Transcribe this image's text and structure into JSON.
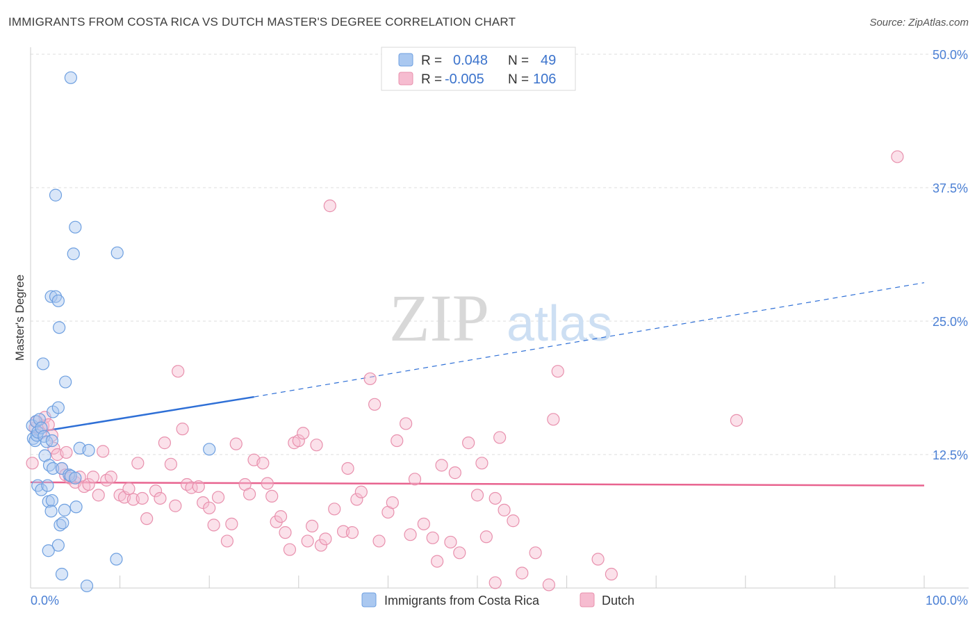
{
  "header": {
    "title": "IMMIGRANTS FROM COSTA RICA VS DUTCH MASTER'S DEGREE CORRELATION CHART",
    "source": "Source: ZipAtlas.com"
  },
  "watermark": {
    "zip": "ZIP",
    "atlas": "atlas"
  },
  "colors": {
    "blue_fill": "#aac8f0",
    "blue_stroke": "#6d9fe0",
    "blue_line": "#2e6fd6",
    "pink_fill": "#f6bcd0",
    "pink_stroke": "#e890ad",
    "pink_line": "#e8638f",
    "tick_text": "#4a7fd4",
    "grid": "#dddddd"
  },
  "chart_data": {
    "type": "scatter",
    "title": "IMMIGRANTS FROM COSTA RICA VS DUTCH MASTER'S DEGREE CORRELATION CHART",
    "xlabel": "",
    "ylabel": "Master's Degree",
    "xlim": [
      0,
      100
    ],
    "ylim": [
      0,
      50
    ],
    "x_tick_labels": [
      "0.0%",
      "100.0%"
    ],
    "y_ticks": [
      12.5,
      25.0,
      37.5,
      50.0
    ],
    "y_tick_labels": [
      "12.5%",
      "25.0%",
      "37.5%",
      "50.0%"
    ],
    "grid": true,
    "legend_position": "top-center",
    "stats": [
      {
        "r_label": "R =",
        "r_value": "0.048",
        "n_label": "N =",
        "n_value": "49"
      },
      {
        "r_label": "R =",
        "r_value": "-0.005",
        "n_label": "N =",
        "n_value": "106"
      }
    ],
    "series": [
      {
        "name": "Immigrants from Costa Rica",
        "color": "#6d9fe0",
        "trend": {
          "x": [
            0,
            25,
            100
          ],
          "y": [
            14.5,
            17.9,
            28.6
          ],
          "solid_until": 25
        },
        "points": [
          [
            0.2,
            15.2
          ],
          [
            0.3,
            14.0
          ],
          [
            0.5,
            13.8
          ],
          [
            0.6,
            15.6
          ],
          [
            0.7,
            14.3
          ],
          [
            0.8,
            14.6
          ],
          [
            1.0,
            15.8
          ],
          [
            1.2,
            15.0
          ],
          [
            1.5,
            14.2
          ],
          [
            1.8,
            13.7
          ],
          [
            1.4,
            21.0
          ],
          [
            1.6,
            12.4
          ],
          [
            0.8,
            9.6
          ],
          [
            1.2,
            9.2
          ],
          [
            1.9,
            9.6
          ],
          [
            2.1,
            11.5
          ],
          [
            2.5,
            11.2
          ],
          [
            2.0,
            8.1
          ],
          [
            2.4,
            8.2
          ],
          [
            2.3,
            7.2
          ],
          [
            3.5,
            11.2
          ],
          [
            4.3,
            10.6
          ],
          [
            4.5,
            10.5
          ],
          [
            5.0,
            10.3
          ],
          [
            3.3,
            5.9
          ],
          [
            3.6,
            6.1
          ],
          [
            3.8,
            7.3
          ],
          [
            5.1,
            7.6
          ],
          [
            3.1,
            4.0
          ],
          [
            2.0,
            3.5
          ],
          [
            3.5,
            1.3
          ],
          [
            6.3,
            0.2
          ],
          [
            2.5,
            16.5
          ],
          [
            3.1,
            16.9
          ],
          [
            3.9,
            19.3
          ],
          [
            2.3,
            27.3
          ],
          [
            2.8,
            27.3
          ],
          [
            3.1,
            26.9
          ],
          [
            3.2,
            24.4
          ],
          [
            2.8,
            36.8
          ],
          [
            5.0,
            33.8
          ],
          [
            4.8,
            31.3
          ],
          [
            9.7,
            31.4
          ],
          [
            4.5,
            47.8
          ],
          [
            5.5,
            13.1
          ],
          [
            6.5,
            12.9
          ],
          [
            20.0,
            13.0
          ],
          [
            9.6,
            2.7
          ],
          [
            2.4,
            13.8
          ]
        ]
      },
      {
        "name": "Dutch",
        "color": "#e890ad",
        "trend": {
          "x": [
            0,
            100
          ],
          "y": [
            9.9,
            9.6
          ]
        },
        "points": [
          [
            0.2,
            11.7
          ],
          [
            0.5,
            15.0
          ],
          [
            0.7,
            15.6
          ],
          [
            1.1,
            14.5
          ],
          [
            1.4,
            15.2
          ],
          [
            1.6,
            16.0
          ],
          [
            2.0,
            15.3
          ],
          [
            2.4,
            14.3
          ],
          [
            2.6,
            13.1
          ],
          [
            3.0,
            12.5
          ],
          [
            3.5,
            11.2
          ],
          [
            3.9,
            10.6
          ],
          [
            4.4,
            10.3
          ],
          [
            5.0,
            9.9
          ],
          [
            5.5,
            10.4
          ],
          [
            6.0,
            9.5
          ],
          [
            6.5,
            9.7
          ],
          [
            7.0,
            10.4
          ],
          [
            7.6,
            8.7
          ],
          [
            8.1,
            12.8
          ],
          [
            8.5,
            10.1
          ],
          [
            9.0,
            10.4
          ],
          [
            10.0,
            8.7
          ],
          [
            10.5,
            8.5
          ],
          [
            11.0,
            9.3
          ],
          [
            11.5,
            8.3
          ],
          [
            12.0,
            11.7
          ],
          [
            12.5,
            8.4
          ],
          [
            13.0,
            6.5
          ],
          [
            14.0,
            9.1
          ],
          [
            14.5,
            8.4
          ],
          [
            15.0,
            13.6
          ],
          [
            15.7,
            11.6
          ],
          [
            16.2,
            7.7
          ],
          [
            17.0,
            14.9
          ],
          [
            17.5,
            9.7
          ],
          [
            18.0,
            9.4
          ],
          [
            18.8,
            9.5
          ],
          [
            19.3,
            8.0
          ],
          [
            20.0,
            7.5
          ],
          [
            20.5,
            5.9
          ],
          [
            21.0,
            8.5
          ],
          [
            22.0,
            4.4
          ],
          [
            22.5,
            6.0
          ],
          [
            23.0,
            13.5
          ],
          [
            24.0,
            9.7
          ],
          [
            24.5,
            8.8
          ],
          [
            25.0,
            12.0
          ],
          [
            26.0,
            11.7
          ],
          [
            26.5,
            9.8
          ],
          [
            27.0,
            8.6
          ],
          [
            27.5,
            6.2
          ],
          [
            28.0,
            6.7
          ],
          [
            28.5,
            5.2
          ],
          [
            29.0,
            3.6
          ],
          [
            29.5,
            13.6
          ],
          [
            30.0,
            13.8
          ],
          [
            30.5,
            14.5
          ],
          [
            31.0,
            4.4
          ],
          [
            31.5,
            5.8
          ],
          [
            32.0,
            13.4
          ],
          [
            32.5,
            4.0
          ],
          [
            33.0,
            4.6
          ],
          [
            34.0,
            7.4
          ],
          [
            35.0,
            5.3
          ],
          [
            35.5,
            11.2
          ],
          [
            36.0,
            5.2
          ],
          [
            36.5,
            8.3
          ],
          [
            37.0,
            9.0
          ],
          [
            38.0,
            19.6
          ],
          [
            38.5,
            17.2
          ],
          [
            39.0,
            4.4
          ],
          [
            40.0,
            7.1
          ],
          [
            40.5,
            8.0
          ],
          [
            41.0,
            13.8
          ],
          [
            42.0,
            15.4
          ],
          [
            42.5,
            5.0
          ],
          [
            43.0,
            10.2
          ],
          [
            44.0,
            6.0
          ],
          [
            45.0,
            4.7
          ],
          [
            45.5,
            2.5
          ],
          [
            46.0,
            11.5
          ],
          [
            47.0,
            4.3
          ],
          [
            47.5,
            10.8
          ],
          [
            48.0,
            3.3
          ],
          [
            49.0,
            13.6
          ],
          [
            50.0,
            8.7
          ],
          [
            50.5,
            11.7
          ],
          [
            51.0,
            4.8
          ],
          [
            52.0,
            8.4
          ],
          [
            52.5,
            14.1
          ],
          [
            53.0,
            7.3
          ],
          [
            54.0,
            6.3
          ],
          [
            55.0,
            1.4
          ],
          [
            56.5,
            3.3
          ],
          [
            58.5,
            15.8
          ],
          [
            59.0,
            20.3
          ],
          [
            63.5,
            2.7
          ],
          [
            65.0,
            1.3
          ],
          [
            79.0,
            15.7
          ],
          [
            97.0,
            40.4
          ],
          [
            33.5,
            35.8
          ],
          [
            16.5,
            20.3
          ],
          [
            52.0,
            0.5
          ],
          [
            58.0,
            0.3
          ],
          [
            4.0,
            12.7
          ]
        ]
      }
    ]
  }
}
